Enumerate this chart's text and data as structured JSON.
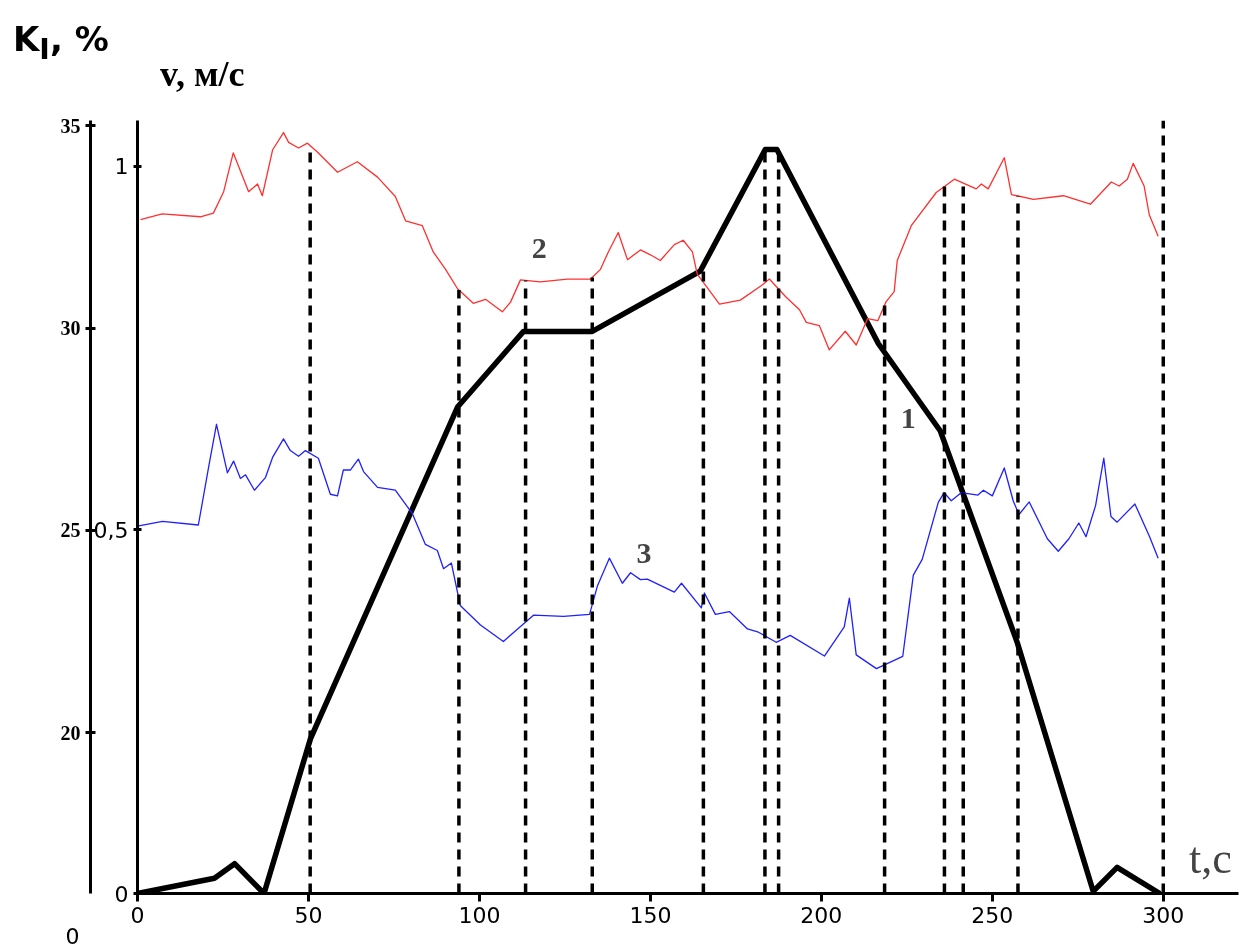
{
  "chart_data": {
    "type": "line",
    "xlabel": "t,c",
    "ylabel": "v, м/с",
    "y2label": "K$_{I}$, %",
    "xlim": [
      0,
      322
    ],
    "xticks": [
      0,
      50,
      100,
      150,
      200,
      250,
      300
    ],
    "ylim": [
      0,
      1.063
    ],
    "yticks": [
      0,
      {
        "value": 0.5,
        "label": "0,5"
      },
      1
    ],
    "y2lim": [
      16.02,
      35.13
    ],
    "y2ticks": [
      20,
      25,
      30,
      35
    ],
    "annotations": [
      "0"
    ],
    "grid": false,
    "line_style": "solid",
    "series": [
      {
        "name": "1",
        "color": "#000000",
        "x": [
          0,
          22.5,
          28.4,
          37,
          50.6,
          93.6,
          112.9,
          133,
          164.6,
          183.6,
          187,
          216.7,
          234.8,
          257.3,
          279.5,
          286.5,
          299
        ],
        "values": [
          0,
          0.021,
          0.041,
          0,
          0.213,
          0.669,
          0.773,
          0.773,
          0.856,
          1.023,
          1.023,
          0.756,
          0.636,
          0.345,
          0.003,
          0.036,
          0
        ]
      },
      {
        "name": "2",
        "color": "#ff3030",
        "axis": "y2",
        "x": [
          0.9,
          7.2,
          18.4,
          22.2,
          25.2,
          28.0,
          32.5,
          35.1,
          36.5,
          39.5,
          42.7,
          44.2,
          47.1,
          49.7,
          52.6,
          58.5,
          64.3,
          70.2,
          75.4,
          78.4,
          83.3,
          86.5,
          90.1,
          93.6,
          98.2,
          101.8,
          106.7,
          109.1,
          112.0,
          117.8,
          125.7,
          132.5,
          135.4,
          137.7,
          140.6,
          143.3,
          147.1,
          150.0,
          152.9,
          157.0,
          159.6,
          162.3,
          163.7,
          170.2,
          176.3,
          182.5,
          184.8,
          189.5,
          193.6,
          195.6,
          199.4,
          202.3,
          207.0,
          210.2,
          213.5,
          216.5,
          219.0,
          221.3,
          222.2,
          226.3,
          233.6,
          238.9,
          245.3,
          246.8,
          248.8,
          253.5,
          255.6,
          262.0,
          270.8,
          278.7,
          284.8,
          287.1,
          289.5,
          291.2,
          294.4,
          295.9,
          298.5
        ],
        "values": [
          32.68,
          32.82,
          32.75,
          32.84,
          33.37,
          34.33,
          33.37,
          33.56,
          33.27,
          34.4,
          34.83,
          34.59,
          34.45,
          34.57,
          34.35,
          33.85,
          34.11,
          33.73,
          33.25,
          32.65,
          32.53,
          31.88,
          31.45,
          30.97,
          30.61,
          30.71,
          30.4,
          30.64,
          31.19,
          31.14,
          31.21,
          31.21,
          31.45,
          31.88,
          32.36,
          31.69,
          31.93,
          31.81,
          31.67,
          32.06,
          32.17,
          31.88,
          31.33,
          30.59,
          30.69,
          31.05,
          31.21,
          30.78,
          30.45,
          30.14,
          30.06,
          29.46,
          29.92,
          29.58,
          30.23,
          30.18,
          30.66,
          30.9,
          31.67,
          32.53,
          33.35,
          33.68,
          33.44,
          33.56,
          33.44,
          34.21,
          33.3,
          33.18,
          33.27,
          33.06,
          33.61,
          33.51,
          33.68,
          34.07,
          33.51,
          32.8,
          32.27
        ]
      },
      {
        "name": "3",
        "color": "#2020ff",
        "axis": "y2",
        "x": [
          0,
          7.3,
          17.8,
          20.8,
          23.1,
          26.3,
          28.1,
          30.1,
          31.6,
          34.2,
          37.4,
          39.5,
          42.7,
          44.7,
          47.1,
          49.1,
          52.9,
          56.4,
          58.5,
          60.2,
          62.3,
          64.6,
          66.1,
          70.2,
          75.4,
          80.4,
          84.2,
          87.7,
          89.5,
          91.8,
          94.4,
          100.3,
          107.0,
          115.8,
          124.6,
          132.2,
          134.5,
          138.0,
          141.8,
          144.2,
          147.1,
          149.1,
          157.0,
          159.1,
          164.9,
          165.8,
          169.0,
          173.1,
          178.4,
          181.6,
          186.8,
          190.9,
          200.9,
          206.7,
          208.2,
          210.2,
          216.1,
          223.8,
          226.9,
          229.5,
          234.2,
          235.9,
          238.0,
          240.9,
          245.8,
          247.4,
          250.0,
          253.5,
          256.1,
          257.8,
          260.8,
          266.1,
          269.3,
          272.4,
          275.3,
          277.4,
          280.2,
          282.6,
          284.7,
          286.5,
          291.7,
          296.0,
          298.5
        ],
        "values": [
          25.1,
          25.22,
          25.13,
          26.56,
          27.62,
          26.42,
          26.71,
          26.28,
          26.37,
          25.99,
          26.3,
          26.8,
          27.26,
          26.97,
          26.83,
          26.97,
          26.78,
          25.89,
          25.85,
          26.49,
          26.49,
          26.76,
          26.45,
          26.06,
          25.99,
          25.41,
          24.65,
          24.5,
          24.05,
          24.19,
          23.14,
          22.66,
          22.25,
          22.9,
          22.87,
          22.92,
          23.62,
          24.31,
          23.69,
          23.95,
          23.78,
          23.79,
          23.47,
          23.69,
          23.08,
          23.45,
          22.92,
          22.99,
          22.56,
          22.48,
          22.23,
          22.4,
          21.89,
          22.61,
          23.32,
          21.92,
          21.58,
          21.88,
          23.89,
          24.28,
          25.69,
          25.93,
          25.73,
          25.93,
          25.87,
          25.99,
          25.85,
          26.54,
          25.73,
          25.39,
          25.7,
          24.79,
          24.48,
          24.79,
          25.18,
          24.84,
          25.61,
          26.78,
          25.34,
          25.2,
          25.65,
          24.84,
          24.31
        ]
      }
    ],
    "ref_lines": [
      {
        "axis": "x",
        "value": 50.5,
        "line_style": "dashed",
        "color": "#000000"
      },
      {
        "axis": "x",
        "value": 94,
        "line_style": "dashed",
        "color": "#000000"
      },
      {
        "axis": "x",
        "value": 113.5,
        "line_style": "dashed",
        "color": "#000000"
      },
      {
        "axis": "x",
        "value": 133,
        "line_style": "dashed",
        "color": "#000000"
      },
      {
        "axis": "x",
        "value": 165.5,
        "line_style": "dashed",
        "color": "#000000"
      },
      {
        "axis": "x",
        "value": 183.5,
        "line_style": "dashed",
        "color": "#000000"
      },
      {
        "axis": "x",
        "value": 187.5,
        "line_style": "dashed",
        "color": "#000000"
      },
      {
        "axis": "x",
        "value": 218.5,
        "line_style": "dashed",
        "color": "#000000"
      },
      {
        "axis": "x",
        "value": 236,
        "line_style": "dashed",
        "color": "#000000"
      },
      {
        "axis": "x",
        "value": 241.5,
        "line_style": "dashed",
        "color": "#000000"
      },
      {
        "axis": "x",
        "value": 257.5,
        "line_style": "dashed",
        "color": "#000000"
      },
      {
        "axis": "x",
        "value": 300,
        "line_style": "dashed",
        "color": "#000000"
      }
    ]
  }
}
